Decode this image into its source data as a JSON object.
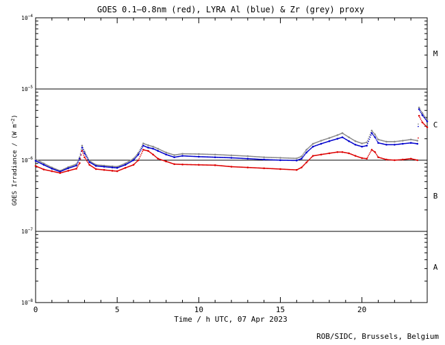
{
  "chart_data": {
    "type": "scatter",
    "title": "GOES 0.1–0.8nm (red), LYRA Al (blue) & Zr (grey) proxy",
    "xlabel": "Time / h UTC, 07 Apr 2023",
    "ylabel_main": "GOES Irradiance / (W m",
    "ylabel_sup": "−2",
    "ylabel_close": ")",
    "footer": "ROB/SIDC, Brussels, Belgium",
    "xlim": [
      0,
      24
    ],
    "ylim": [
      1e-08,
      0.0001
    ],
    "y_scale": "log",
    "x_ticks": [
      0,
      5,
      10,
      15,
      20
    ],
    "x_tick_labels": [
      "0",
      "5",
      "10",
      "15",
      "20"
    ],
    "y_ticks": [
      {
        "value": 0.0001,
        "base": "10",
        "exp": "−4"
      },
      {
        "value": 1e-05,
        "base": "10",
        "exp": "−5"
      },
      {
        "value": 1e-06,
        "base": "10",
        "exp": "−6"
      },
      {
        "value": 1e-07,
        "base": "10",
        "exp": "−7"
      },
      {
        "value": 1e-08,
        "base": "10",
        "exp": "−8"
      }
    ],
    "flare_class_lines": [
      1e-05,
      1e-06,
      1e-07
    ],
    "flare_classes": [
      {
        "label": "M",
        "value": 3.16e-05
      },
      {
        "label": "C",
        "value": 3.16e-06
      },
      {
        "label": "B",
        "value": 3.16e-07
      },
      {
        "label": "A",
        "value": 3.16e-08
      }
    ],
    "series": [
      {
        "name": "GOES 0.1–0.8nm",
        "color": "#dd0000",
        "x": [
          0,
          0.5,
          1.0,
          1.5,
          2.0,
          2.5,
          2.7,
          2.85,
          3.0,
          3.3,
          3.7,
          4.2,
          4.7,
          5.0,
          5.5,
          6.0,
          6.3,
          6.6,
          6.9,
          7.2,
          7.5,
          8.0,
          8.5,
          9.0,
          10,
          11,
          12,
          13,
          14,
          15,
          16,
          16.3,
          16.6,
          17,
          17.5,
          18,
          18.5,
          18.8,
          19.2,
          19.6,
          20,
          20.3,
          20.6,
          20.8,
          21,
          21.5,
          22,
          22.5,
          23,
          23.4,
          23.5,
          23.7,
          24
        ],
        "y": [
          8.3e-07,
          7.4e-07,
          7e-07,
          6.6e-07,
          7.1e-07,
          7.6e-07,
          9.1e-07,
          1.35e-06,
          1.1e-06,
          8.6e-07,
          7.5e-07,
          7.3e-07,
          7.1e-07,
          7e-07,
          7.8e-07,
          8.6e-07,
          1e-06,
          1.4e-06,
          1.35e-06,
          1.2e-06,
          1.05e-06,
          9.6e-07,
          8.8e-07,
          8.7e-07,
          8.6e-07,
          8.5e-07,
          8.1e-07,
          7.9e-07,
          7.7e-07,
          7.5e-07,
          7.3e-07,
          7.9e-07,
          9.3e-07,
          1.15e-06,
          1.2e-06,
          1.25e-06,
          1.3e-06,
          1.3e-06,
          1.25e-06,
          1.15e-06,
          1.07e-06,
          1.05e-06,
          1.4e-06,
          1.3e-06,
          1.1e-06,
          1.02e-06,
          1e-06,
          1.02e-06,
          1.05e-06,
          1e-06,
          4.2e-06,
          3.4e-06,
          2.9e-06
        ]
      },
      {
        "name": "LYRA Al",
        "color": "#0000cc",
        "x": [
          0,
          0.5,
          1.0,
          1.5,
          2.0,
          2.5,
          2.7,
          2.85,
          3.0,
          3.3,
          3.7,
          4.2,
          4.7,
          5.0,
          5.5,
          6.0,
          6.3,
          6.6,
          6.9,
          7.2,
          7.5,
          8.0,
          8.5,
          9.0,
          10,
          11,
          12,
          13,
          14,
          15,
          16,
          16.3,
          16.6,
          17,
          17.5,
          18,
          18.5,
          18.8,
          19.2,
          19.6,
          20,
          20.3,
          20.6,
          20.8,
          21,
          21.5,
          22,
          22.5,
          23,
          23.4,
          23.5,
          23.7,
          24
        ],
        "y": [
          9.8e-07,
          8.6e-07,
          7.6e-07,
          6.9e-07,
          7.7e-07,
          8.4e-07,
          1.05e-06,
          1.5e-06,
          1.25e-06,
          9.4e-07,
          8.3e-07,
          8.1e-07,
          7.9e-07,
          7.8e-07,
          8.6e-07,
          1e-06,
          1.2e-06,
          1.6e-06,
          1.5e-06,
          1.45e-06,
          1.35e-06,
          1.2e-06,
          1.1e-06,
          1.15e-06,
          1.12e-06,
          1.1e-06,
          1.08e-06,
          1.05e-06,
          1.02e-06,
          1e-06,
          9.9e-07,
          1.05e-06,
          1.28e-06,
          1.55e-06,
          1.7e-06,
          1.85e-06,
          2e-06,
          2.1e-06,
          1.85e-06,
          1.65e-06,
          1.55e-06,
          1.6e-06,
          2.4e-06,
          2.1e-06,
          1.75e-06,
          1.65e-06,
          1.65e-06,
          1.7e-06,
          1.75e-06,
          1.7e-06,
          5.2e-06,
          4.3e-06,
          3.5e-06
        ]
      },
      {
        "name": "Zr proxy",
        "color": "#8a8a8a",
        "x": [
          0,
          0.5,
          1.0,
          1.5,
          2.0,
          2.5,
          2.7,
          2.85,
          3.0,
          3.3,
          3.7,
          4.2,
          4.7,
          5.0,
          5.5,
          6.0,
          6.3,
          6.6,
          6.9,
          7.2,
          7.5,
          8.0,
          8.5,
          9.0,
          10,
          11,
          12,
          13,
          14,
          15,
          16,
          16.3,
          16.6,
          17,
          17.5,
          18,
          18.5,
          18.8,
          19.2,
          19.6,
          20,
          20.3,
          20.6,
          20.8,
          21,
          21.5,
          22,
          22.5,
          23,
          23.4,
          23.5,
          23.7,
          24
        ],
        "y": [
          1.03e-06,
          9e-07,
          7.9e-07,
          7.1e-07,
          8e-07,
          8.8e-07,
          1.1e-06,
          1.6e-06,
          1.32e-06,
          9.8e-07,
          8.6e-07,
          8.4e-07,
          8.2e-07,
          8.1e-07,
          9e-07,
          1.05e-06,
          1.27e-06,
          1.72e-06,
          1.62e-06,
          1.55e-06,
          1.45e-06,
          1.28e-06,
          1.18e-06,
          1.23e-06,
          1.22e-06,
          1.2e-06,
          1.17e-06,
          1.14e-06,
          1.1e-06,
          1.08e-06,
          1.06e-06,
          1.13e-06,
          1.4e-06,
          1.7e-06,
          1.88e-06,
          2.05e-06,
          2.25e-06,
          2.4e-06,
          2.1e-06,
          1.85e-06,
          1.72e-06,
          1.78e-06,
          2.6e-06,
          2.3e-06,
          1.95e-06,
          1.82e-06,
          1.82e-06,
          1.88e-06,
          1.95e-06,
          1.88e-06,
          5.5e-06,
          4.6e-06,
          3.7e-06
        ]
      }
    ]
  }
}
